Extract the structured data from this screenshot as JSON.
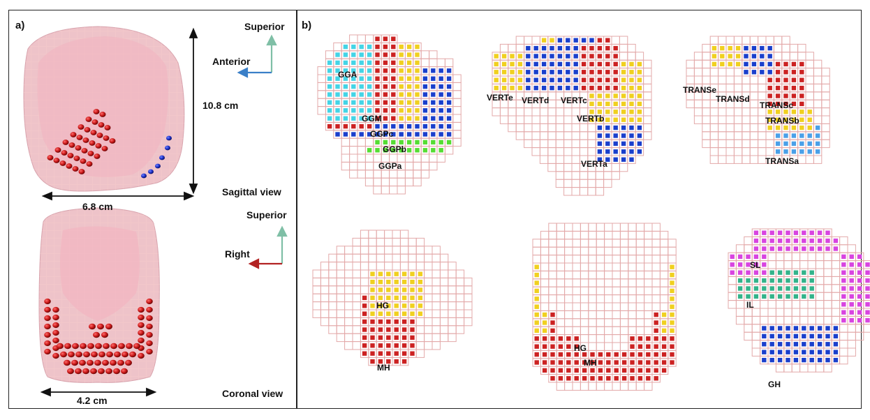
{
  "panel_a": {
    "label": "a)",
    "sagittal_caption": "Sagittal view",
    "coronal_caption": "Coronal view",
    "height_dim": "10.8 cm",
    "width_dim_sagittal": "6.8 cm",
    "width_dim_coronal": "4.2 cm",
    "axes_sagittal": {
      "vertical": "Superior",
      "horizontal": "Anterior"
    },
    "axes_coronal": {
      "vertical": "Superior",
      "horizontal": "Right"
    }
  },
  "panel_b": {
    "label": "b)",
    "maps": [
      {
        "id": "gg",
        "labels": [
          "GGA",
          "GGM",
          "GGPc",
          "GGPb",
          "GGPa"
        ]
      },
      {
        "id": "vert",
        "labels": [
          "VERTe",
          "VERTd",
          "VERTc",
          "VERTb",
          "VERTa"
        ]
      },
      {
        "id": "trans",
        "labels": [
          "TRANSe",
          "TRANSd",
          "TRANSc",
          "TRANSb",
          "TRANSa"
        ]
      },
      {
        "id": "sag-bottom",
        "labels": [
          "HG",
          "MH"
        ]
      },
      {
        "id": "coronal-bottom",
        "labels": [
          "HG",
          "MH"
        ]
      },
      {
        "id": "axial-bottom",
        "labels": [
          "SL",
          "IL",
          "GH"
        ]
      }
    ]
  },
  "colors": {
    "grid": "#e3a9a9",
    "red": "#cc2222",
    "yellow": "#f0d020",
    "blue": "#1a3fcc",
    "cyan": "#44d4e6",
    "green": "#55dd33",
    "lightblue": "#4aa0e8",
    "magenta": "#d844e0",
    "teal": "#33b38a",
    "tongue": "#f3b8c3",
    "axis_green": "#7fbfa6",
    "axis_blue": "#3a7fc8",
    "axis_red": "#b22222"
  }
}
